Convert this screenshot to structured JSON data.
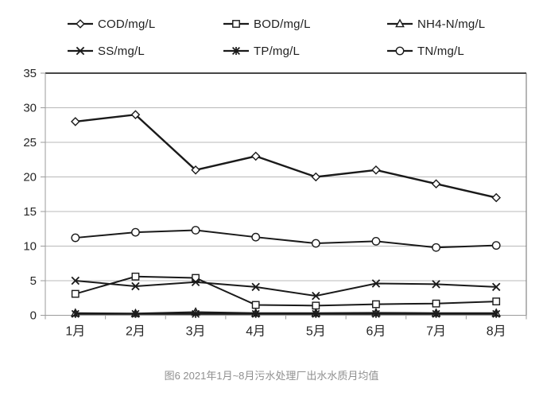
{
  "chart_data": {
    "type": "line",
    "title": "",
    "xlabel": "",
    "ylabel": "",
    "caption": "图6 2021年1月~8月污水处理厂出水水质月均值",
    "categories": [
      "1月",
      "2月",
      "3月",
      "4月",
      "5月",
      "6月",
      "7月",
      "8月"
    ],
    "series": [
      {
        "name": "COD/mg/L",
        "marker": "diamond",
        "values": [
          28,
          29,
          21,
          23,
          20,
          21,
          19,
          17
        ]
      },
      {
        "name": "BOD/mg/L",
        "marker": "square",
        "values": [
          3.1,
          5.6,
          5.4,
          1.5,
          1.4,
          1.6,
          1.7,
          2.0
        ]
      },
      {
        "name": "NH4-N/mg/L",
        "marker": "triangle",
        "values": [
          0.3,
          0.25,
          0.45,
          0.3,
          0.3,
          0.35,
          0.3,
          0.3
        ]
      },
      {
        "name": "SS/mg/L",
        "marker": "x",
        "values": [
          5.0,
          4.2,
          4.8,
          4.1,
          2.8,
          4.6,
          4.5,
          4.1
        ]
      },
      {
        "name": "TP/mg/L",
        "marker": "asterisk",
        "values": [
          0.2,
          0.2,
          0.2,
          0.2,
          0.2,
          0.2,
          0.2,
          0.2
        ]
      },
      {
        "name": "TN/mg/L",
        "marker": "circle",
        "values": [
          11.2,
          12.0,
          12.3,
          11.3,
          10.4,
          10.7,
          9.8,
          10.1
        ]
      }
    ],
    "ylim": [
      0,
      35
    ],
    "ytick_step": 5,
    "grid": true,
    "legend_position": "top",
    "line_color": "#1a1a1a",
    "marker_fill": "#ffffff",
    "gridline_color": "#b8b8b8",
    "axis_color": "#9b9b9b",
    "top_border_color": "#2b2b2b"
  }
}
